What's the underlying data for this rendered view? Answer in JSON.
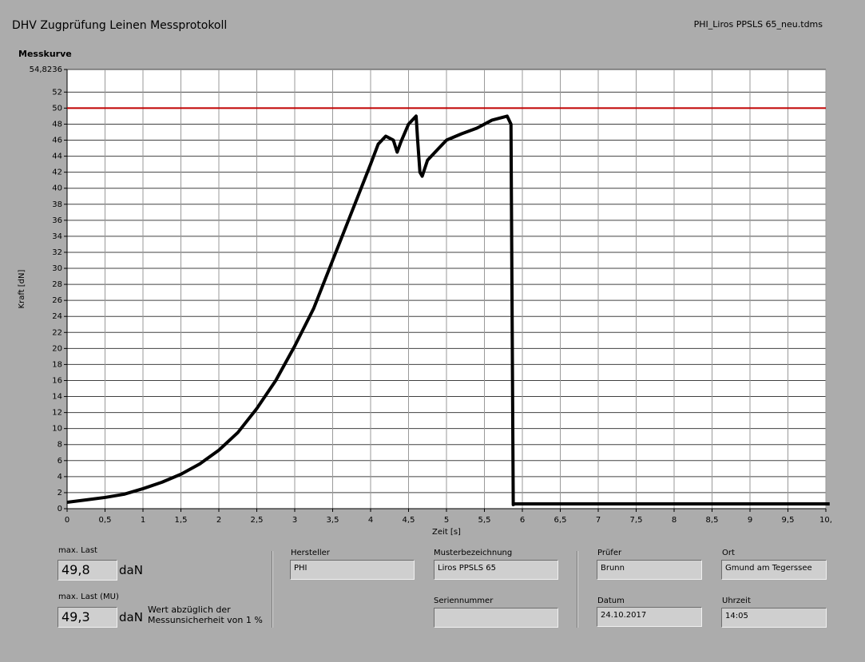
{
  "header": {
    "title": "DHV Zugprüfung Leinen Messprotokoll",
    "file": "PHI_Liros PPSLS 65_neu.tdms"
  },
  "chart_data": {
    "type": "line",
    "title": "Messkurve",
    "x_label": "Zeit [s]",
    "y_label": "Kraft [dN]",
    "x": [
      0,
      0.25,
      0.5,
      0.75,
      1,
      1.25,
      1.5,
      1.75,
      2,
      2.25,
      2.5,
      2.75,
      3,
      3.25,
      3.5,
      3.75,
      4,
      4.1,
      4.2,
      4.3,
      4.35,
      4.4,
      4.5,
      4.6,
      4.62,
      4.65,
      4.68,
      4.75,
      4.9,
      5,
      5.2,
      5.4,
      5.6,
      5.8,
      5.85,
      5.88,
      5.9,
      6.5,
      7,
      8,
      9,
      10.05
    ],
    "values": [
      0.8,
      1.1,
      1.4,
      1.8,
      2.5,
      3.3,
      4.3,
      5.6,
      7.3,
      9.5,
      12.5,
      16,
      20.3,
      25,
      31,
      37,
      43,
      45.5,
      46.5,
      46,
      44.5,
      45.8,
      48,
      49,
      46,
      42,
      41.5,
      43.5,
      45,
      46,
      46.8,
      47.5,
      48.5,
      49,
      48,
      0.5,
      0.6,
      0.6,
      0.6,
      0.6,
      0.6,
      0.6
    ],
    "color": "#000000",
    "xlim": [
      0,
      10
    ],
    "ylim": [
      0,
      54.8236
    ],
    "xticks": [
      0,
      {
        "value": 0.5,
        "label": "0,5"
      },
      1,
      {
        "value": 1.5,
        "label": "1,5"
      },
      2,
      {
        "value": 2.5,
        "label": "2,5"
      },
      3,
      {
        "value": 3.5,
        "label": "3,5"
      },
      4,
      {
        "value": 4.5,
        "label": "4,5"
      },
      5,
      {
        "value": 5.5,
        "label": "5,5"
      },
      6,
      {
        "value": 6.5,
        "label": "6,5"
      },
      7,
      {
        "value": 7.5,
        "label": "7,5"
      },
      8,
      {
        "value": 8.5,
        "label": "8,5"
      },
      9,
      {
        "value": 9.5,
        "label": "9,5"
      },
      {
        "value": 10,
        "label": "10,"
      }
    ],
    "yticks": [
      0,
      2,
      4,
      6,
      8,
      10,
      12,
      14,
      16,
      18,
      20,
      22,
      24,
      26,
      28,
      30,
      32,
      34,
      36,
      38,
      40,
      42,
      44,
      46,
      48,
      50,
      52,
      {
        "value": 54.8236,
        "label": "54,8236"
      }
    ],
    "grid": true,
    "reference_line": {
      "value": 50,
      "color": "#c00000"
    }
  },
  "form": {
    "max_last": {
      "label": "max. Last",
      "value": "49,8",
      "unit": "daN"
    },
    "max_last_mu": {
      "label": "max. Last (MU)",
      "value": "49,3",
      "unit": "daN",
      "note": "Wert abzüglich der Messunsicherheit von 1 %"
    },
    "hersteller": {
      "label": "Hersteller",
      "value": "PHI"
    },
    "musterbezeichnung": {
      "label": "Musterbezeichnung",
      "value": "Liros PPSLS 65"
    },
    "seriennummer": {
      "label": "Seriennummer"
    },
    "pruefer": {
      "label": "Prüfer",
      "value": "Brunn"
    },
    "ort": {
      "label": "Ort",
      "value": "Gmund am Tegerssee"
    },
    "datum": {
      "label": "Datum",
      "value": "24.10.2017"
    },
    "uhrzeit": {
      "label": "Uhrzeit",
      "value": "14:05"
    }
  }
}
